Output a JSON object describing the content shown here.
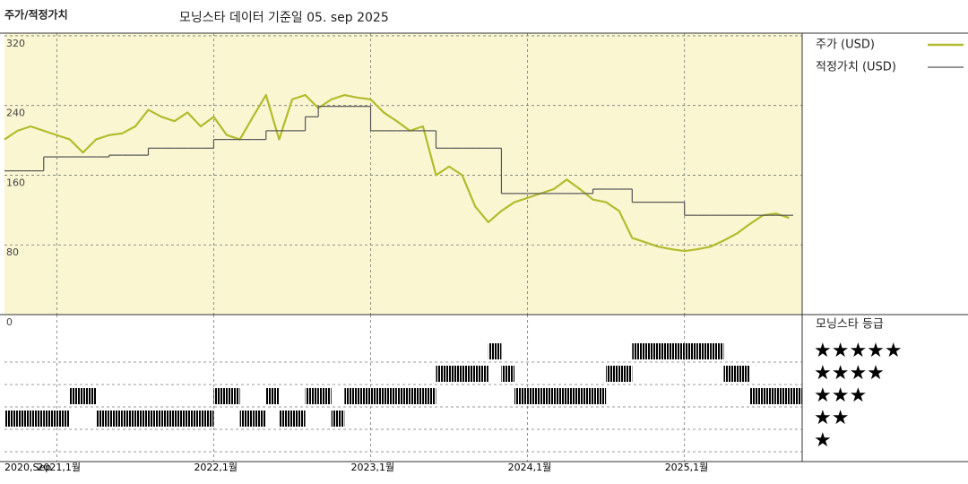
{
  "chart_data": {
    "type": "line",
    "title": "주가/적정가치",
    "subtitle": "모닝스타 데이터 기준일 05. sep 2025",
    "x": [
      "2020-09",
      "2020-10",
      "2020-11",
      "2020-12",
      "2021-01",
      "2021-02",
      "2021-03",
      "2021-04",
      "2021-05",
      "2021-06",
      "2021-07",
      "2021-08",
      "2021-09",
      "2021-10",
      "2021-11",
      "2021-12",
      "2022-01",
      "2022-02",
      "2022-03",
      "2022-04",
      "2022-05",
      "2022-06",
      "2022-07",
      "2022-08",
      "2022-09",
      "2022-10",
      "2022-11",
      "2022-12",
      "2023-01",
      "2023-02",
      "2023-03",
      "2023-04",
      "2023-05",
      "2023-06",
      "2023-07",
      "2023-08",
      "2023-09",
      "2023-10",
      "2023-11",
      "2023-12",
      "2024-01",
      "2024-02",
      "2024-03",
      "2024-04",
      "2024-05",
      "2024-06",
      "2024-07",
      "2024-08",
      "2024-09",
      "2024-10",
      "2024-11",
      "2024-12",
      "2025-01",
      "2025-02",
      "2025-03",
      "2025-04",
      "2025-05",
      "2025-06",
      "2025-07",
      "2025-08",
      "2025-09"
    ],
    "series": [
      {
        "name": "주가 (USD)",
        "color": "#b3bb2c",
        "values": [
          201,
          211,
          216,
          211,
          206,
          201,
          186,
          201,
          206,
          208,
          216,
          235,
          227,
          222,
          232,
          216,
          227,
          206,
          201,
          227,
          252,
          201,
          247,
          252,
          237,
          247,
          252,
          249,
          247,
          232,
          222,
          211,
          216,
          160,
          170,
          160,
          124,
          106,
          119,
          129,
          134,
          139,
          144,
          155,
          144,
          132,
          129,
          119,
          88,
          83,
          78,
          75,
          73,
          75,
          78,
          85,
          93,
          104,
          114,
          116,
          111
        ]
      },
      {
        "name": "적정가치 (USD)",
        "color": "#555555",
        "step": true,
        "values": [
          165,
          165,
          165,
          181,
          181,
          181,
          181,
          181,
          183,
          183,
          183,
          191,
          191,
          191,
          191,
          191,
          201,
          201,
          201,
          201,
          211,
          211,
          211,
          227,
          239,
          239,
          239,
          239,
          211,
          211,
          211,
          211,
          211,
          191,
          191,
          191,
          191,
          191,
          139,
          139,
          139,
          139,
          139,
          139,
          139,
          144,
          144,
          144,
          129,
          129,
          129,
          129,
          114,
          114,
          114,
          114,
          114,
          114,
          114,
          114,
          114
        ]
      }
    ],
    "xlim": [
      "2020-09",
      "2025-10"
    ],
    "xticks": [
      {
        "value": "2020-09",
        "label": "2020,Sep"
      },
      {
        "value": "2021-01",
        "label": "2021,1월"
      },
      {
        "value": "2022-01",
        "label": "2022,1월"
      },
      {
        "value": "2023-01",
        "label": "2023,1월"
      },
      {
        "value": "2024-01",
        "label": "2024,1월"
      },
      {
        "value": "2025-01",
        "label": "2025,1월"
      }
    ],
    "ylim": [
      0,
      323
    ],
    "yticks": [
      0,
      80,
      160,
      240,
      320
    ],
    "grid": true,
    "ratings": {
      "title": "모닝스타 등급",
      "labels": [
        "★",
        "★★",
        "★★★",
        "★★★★",
        "★★★★★"
      ],
      "colors": {
        "normal": "#333333",
        "top": "#4f8c72"
      },
      "values": [
        2,
        2,
        2,
        2,
        2,
        3,
        3,
        2,
        2,
        2,
        2,
        2,
        2,
        2,
        2,
        2,
        3,
        3,
        2,
        2,
        3,
        2,
        2,
        3,
        3,
        2,
        3,
        3,
        3,
        3,
        3,
        3,
        3,
        4,
        4,
        4,
        4,
        5,
        4,
        3,
        3,
        3,
        3,
        3,
        3,
        3,
        4,
        4,
        5,
        5,
        5,
        5,
        5,
        5,
        5,
        4,
        4,
        3,
        3,
        3,
        3
      ]
    }
  }
}
